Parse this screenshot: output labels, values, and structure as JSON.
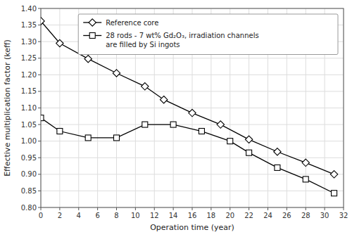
{
  "chart_data": {
    "type": "line",
    "x_label": "Operation time (year)",
    "y_label": "Effective multiplication factor (keff)",
    "series": [
      {
        "name": "Reference core",
        "color": "#000000",
        "marker": "diamond",
        "x": [
          0,
          2,
          5,
          8,
          11,
          13,
          16,
          19,
          22,
          25,
          28,
          31
        ],
        "values": [
          1.362,
          1.295,
          1.248,
          1.205,
          1.165,
          1.125,
          1.085,
          1.05,
          1.005,
          0.968,
          0.935,
          0.9
        ]
      },
      {
        "name": "28 rods - 7 wt% Gd₂O₃, irradiation channels\nare filled by Si ingots",
        "color": "#000000",
        "marker": "square",
        "x": [
          0,
          2,
          5,
          8,
          11,
          14,
          17,
          20,
          22,
          25,
          28,
          31
        ],
        "values": [
          1.07,
          1.03,
          1.01,
          1.01,
          1.05,
          1.05,
          1.03,
          1.0,
          0.965,
          0.92,
          0.885,
          0.843
        ]
      }
    ],
    "xlim": [
      0,
      32
    ],
    "ylim": [
      0.8,
      1.4
    ],
    "xticks": [
      0,
      2,
      4,
      6,
      8,
      10,
      12,
      14,
      16,
      18,
      20,
      22,
      24,
      26,
      28,
      30,
      32
    ],
    "yticks": [
      {
        "value": 0.8,
        "label": "0.80"
      },
      0.85,
      {
        "value": 0.9,
        "label": "0.90"
      },
      0.95,
      {
        "value": 1.0,
        "label": "1.00"
      },
      1.05,
      {
        "value": 1.1,
        "label": "1.10"
      },
      1.15,
      {
        "value": 1.2,
        "label": "1.20"
      },
      1.25,
      {
        "value": 1.3,
        "label": "1.30"
      },
      1.35,
      {
        "value": 1.4,
        "label": "1.40"
      }
    ],
    "grid": true,
    "legend": "upper right"
  }
}
